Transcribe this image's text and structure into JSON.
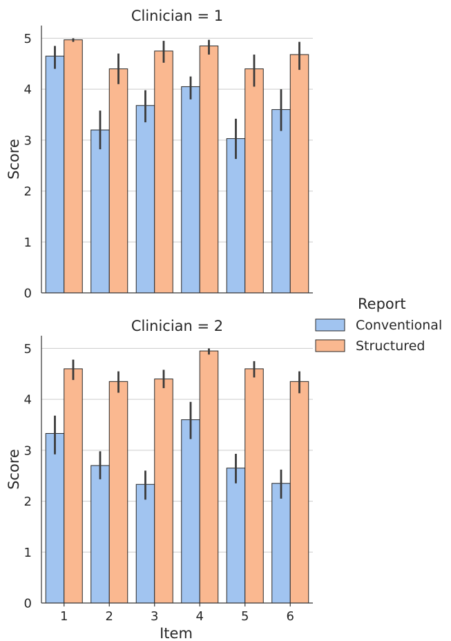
{
  "chart_data": {
    "type": "bar",
    "ylabel": "Score",
    "xlabel": "Item",
    "categories": [
      "1",
      "2",
      "3",
      "4",
      "5",
      "6"
    ],
    "ylim": [
      0,
      5.25
    ],
    "yticks": [
      0,
      1,
      2,
      3,
      4,
      5
    ],
    "grid": true,
    "legend": {
      "title": "Report",
      "placement": "center-right",
      "entries": [
        {
          "name": "Conventional",
          "color": "#a1c4f0"
        },
        {
          "name": "Structured",
          "color": "#fab890"
        }
      ]
    },
    "panels": [
      {
        "title": "Clinician = 1",
        "series": [
          {
            "name": "Conventional",
            "values": [
              4.65,
              3.2,
              3.68,
              4.05,
              3.03,
              3.6
            ],
            "ci": [
              [
                4.4,
                4.85
              ],
              [
                2.82,
                3.58
              ],
              [
                3.35,
                3.98
              ],
              [
                3.8,
                4.25
              ],
              [
                2.63,
                3.42
              ],
              [
                3.18,
                4.0
              ]
            ]
          },
          {
            "name": "Structured",
            "values": [
              4.97,
              4.4,
              4.75,
              4.85,
              4.4,
              4.68
            ],
            "ci": [
              [
                4.93,
                5.0
              ],
              [
                4.1,
                4.7
              ],
              [
                4.52,
                4.95
              ],
              [
                4.68,
                4.97
              ],
              [
                4.05,
                4.68
              ],
              [
                4.38,
                4.93
              ]
            ]
          }
        ]
      },
      {
        "title": "Clinician = 2",
        "series": [
          {
            "name": "Conventional",
            "values": [
              3.33,
              2.7,
              2.33,
              3.6,
              2.65,
              2.35
            ],
            "ci": [
              [
                2.92,
                3.68
              ],
              [
                2.43,
                2.98
              ],
              [
                2.03,
                2.6
              ],
              [
                3.22,
                3.95
              ],
              [
                2.35,
                2.93
              ],
              [
                2.05,
                2.62
              ]
            ]
          },
          {
            "name": "Structured",
            "values": [
              4.6,
              4.35,
              4.4,
              4.95,
              4.6,
              4.35
            ],
            "ci": [
              [
                4.38,
                4.78
              ],
              [
                4.13,
                4.55
              ],
              [
                4.22,
                4.58
              ],
              [
                4.88,
                5.0
              ],
              [
                4.43,
                4.75
              ],
              [
                4.12,
                4.55
              ]
            ]
          }
        ]
      }
    ]
  }
}
